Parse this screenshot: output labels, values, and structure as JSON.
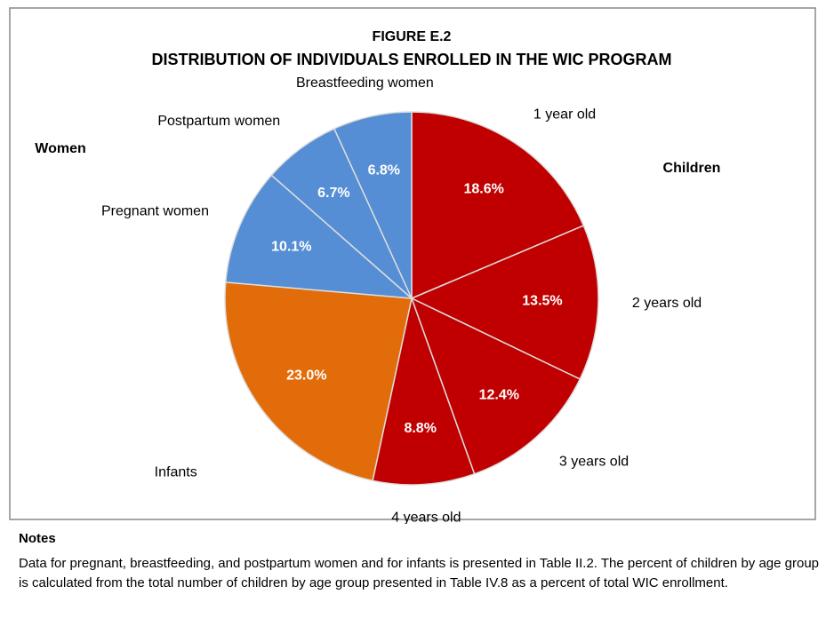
{
  "chart_data": {
    "type": "pie",
    "title": "FIGURE  E.2",
    "subtitle": "DISTRIBUTION   OF INDIVIDUALS  ENROLLED IN THE  WIC PROGRAM",
    "categories": [
      "1 year old",
      "2 years old",
      "3 years old",
      "4 years old",
      "Infants",
      "Pregnant women",
      "Postpartum women",
      "Breastfeeding women"
    ],
    "values": [
      18.6,
      13.5,
      12.4,
      8.8,
      23.0,
      10.1,
      6.7,
      6.8
    ],
    "value_labels": [
      "18.6%",
      "13.5%",
      "12.4%",
      "8.8%",
      "23.0%",
      "10.1%",
      "6.7%",
      "6.8%"
    ],
    "colors": [
      "#c00000",
      "#c00000",
      "#c00000",
      "#c00000",
      "#e36c0a",
      "#558ed5",
      "#558ed5",
      "#558ed5"
    ],
    "groups": [
      "Women",
      "Children"
    ]
  },
  "notes": {
    "title": "Notes",
    "text": "Data for pregnant, breastfeeding, and postpartum women and for infants is presented in Table II.2.  The percent of children by age group is calculated from the total number of children by age group presented in Table IV.8 as a percent of total WIC enrollment."
  }
}
